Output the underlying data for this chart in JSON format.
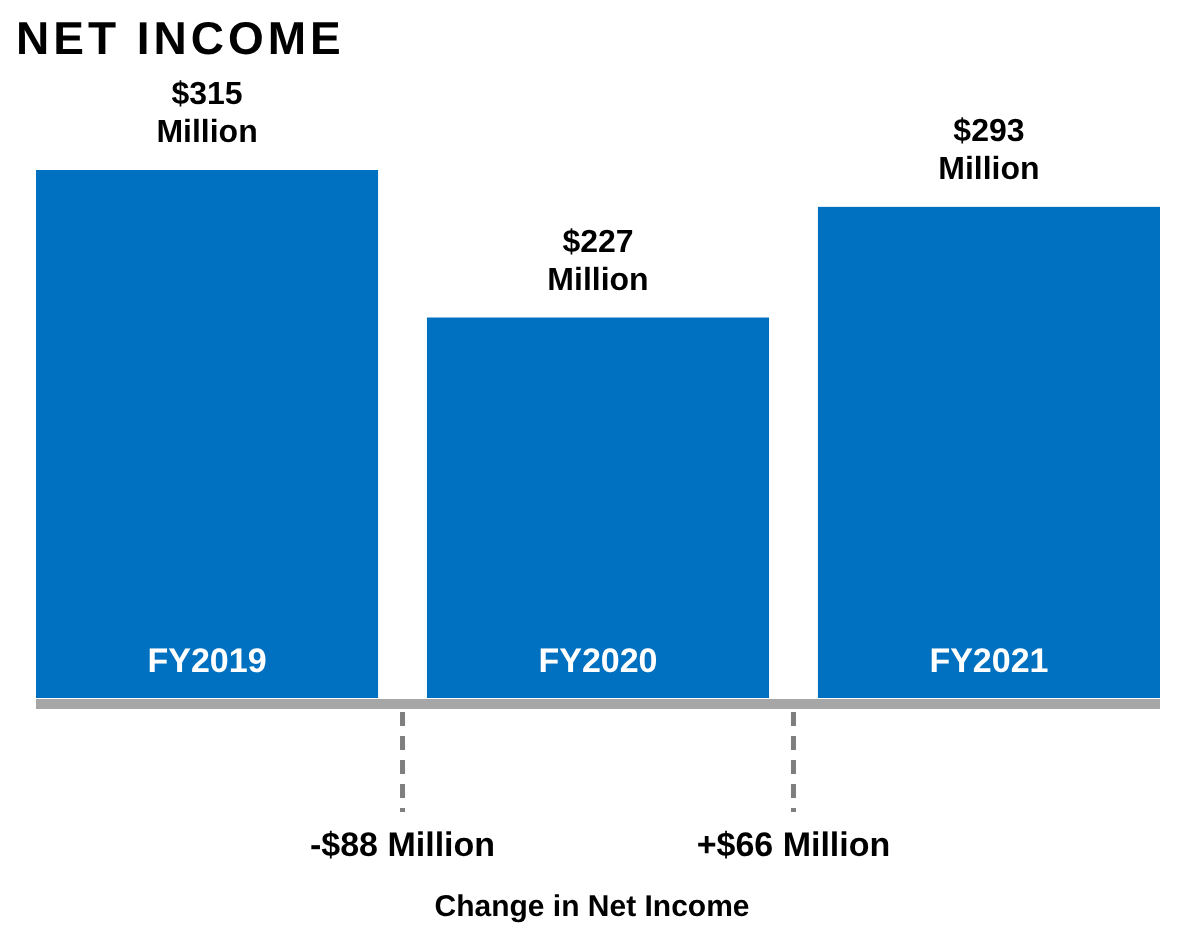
{
  "chart_data": {
    "type": "bar",
    "title": "NET INCOME",
    "categories": [
      "FY2019",
      "FY2020",
      "FY2021"
    ],
    "values": [
      315,
      227,
      293
    ],
    "color": "#0070c0",
    "value_labels": [
      "$315 Million",
      "$227 Million",
      "$293 Million"
    ],
    "annotations": [
      "-$88 Million",
      "+$66 Million",
      "Change in Net Income"
    ]
  }
}
